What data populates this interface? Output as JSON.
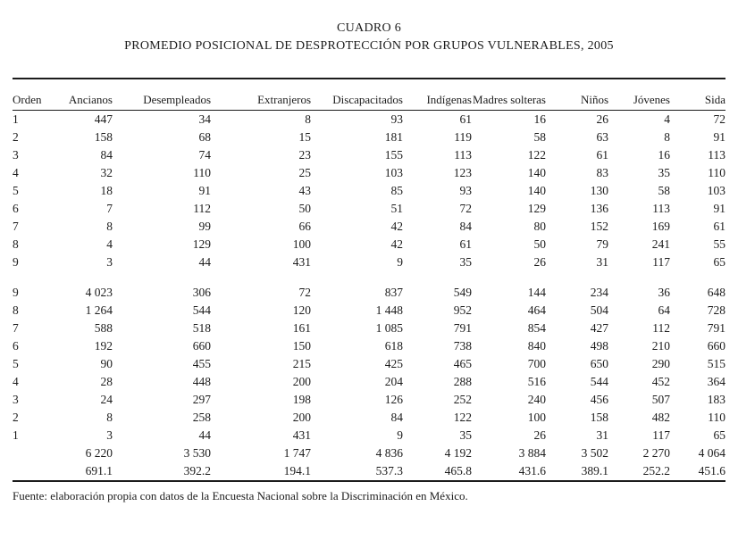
{
  "title": "CUADRO 6",
  "subtitle": "PROMEDIO POSICIONAL DE DESPROTECCIÓN POR GRUPOS VULNERABLES, 2005",
  "table": {
    "columns": [
      "Orden",
      "Ancianos",
      "Desempleados",
      "Extranjeros",
      "Discapacitados",
      "Indígenas",
      "Madres solteras",
      "Niños",
      "Jóvenes",
      "Sida"
    ],
    "ascending_block": [
      [
        "1",
        "447",
        "34",
        "8",
        "93",
        "61",
        "16",
        "26",
        "4",
        "72"
      ],
      [
        "2",
        "158",
        "68",
        "15",
        "181",
        "119",
        "58",
        "63",
        "8",
        "91"
      ],
      [
        "3",
        "84",
        "74",
        "23",
        "155",
        "113",
        "122",
        "61",
        "16",
        "113"
      ],
      [
        "4",
        "32",
        "110",
        "25",
        "103",
        "123",
        "140",
        "83",
        "35",
        "110"
      ],
      [
        "5",
        "18",
        "91",
        "43",
        "85",
        "93",
        "140",
        "130",
        "58",
        "103"
      ],
      [
        "6",
        "7",
        "112",
        "50",
        "51",
        "72",
        "129",
        "136",
        "113",
        "91"
      ],
      [
        "7",
        "8",
        "99",
        "66",
        "42",
        "84",
        "80",
        "152",
        "169",
        "61"
      ],
      [
        "8",
        "4",
        "129",
        "100",
        "42",
        "61",
        "50",
        "79",
        "241",
        "55"
      ],
      [
        "9",
        "3",
        "44",
        "431",
        "9",
        "35",
        "26",
        "31",
        "117",
        "65"
      ]
    ],
    "descending_block": [
      [
        "9",
        "4 023",
        "306",
        "72",
        "837",
        "549",
        "144",
        "234",
        "36",
        "648"
      ],
      [
        "8",
        "1 264",
        "544",
        "120",
        "1 448",
        "952",
        "464",
        "504",
        "64",
        "728"
      ],
      [
        "7",
        "588",
        "518",
        "161",
        "1 085",
        "791",
        "854",
        "427",
        "112",
        "791"
      ],
      [
        "6",
        "192",
        "660",
        "150",
        "618",
        "738",
        "840",
        "498",
        "210",
        "660"
      ],
      [
        "5",
        "90",
        "455",
        "215",
        "425",
        "465",
        "700",
        "650",
        "290",
        "515"
      ],
      [
        "4",
        "28",
        "448",
        "200",
        "204",
        "288",
        "516",
        "544",
        "452",
        "364"
      ],
      [
        "3",
        "24",
        "297",
        "198",
        "126",
        "252",
        "240",
        "456",
        "507",
        "183"
      ],
      [
        "2",
        "8",
        "258",
        "200",
        "84",
        "122",
        "100",
        "158",
        "482",
        "110"
      ],
      [
        "1",
        "3",
        "44",
        "431",
        "9",
        "35",
        "26",
        "31",
        "117",
        "65"
      ]
    ],
    "totals_row": [
      "",
      "6 220",
      "3 530",
      "1 747",
      "4 836",
      "4 192",
      "3 884",
      "3 502",
      "2 270",
      "4 064"
    ],
    "averages_row": [
      "",
      "691.1",
      "392.2",
      "194.1",
      "537.3",
      "465.8",
      "431.6",
      "389.1",
      "252.2",
      "451.6"
    ]
  },
  "source": "Fuente: elaboración propia con datos de la Encuesta Nacional sobre la Discriminación en México."
}
